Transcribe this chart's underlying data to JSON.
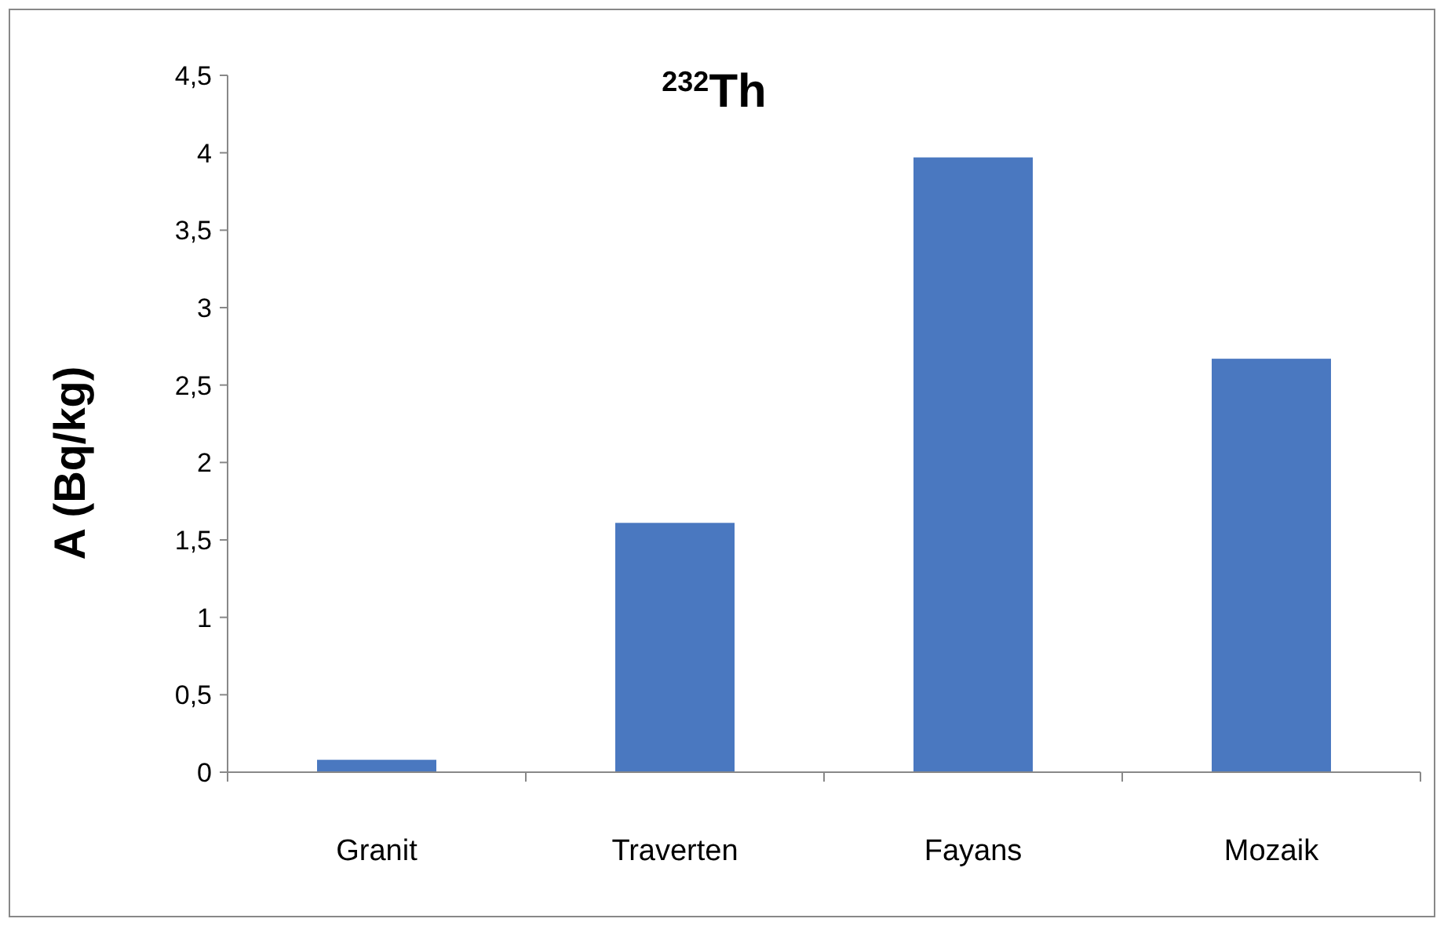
{
  "chart_data": {
    "type": "bar",
    "title": "$^{232}$Th",
    "ylabel": "A (Bq/kg)",
    "categories": [
      "Granit",
      "Traverten",
      "Fayans",
      "Mozaik"
    ],
    "values": [
      0.08,
      1.61,
      3.97,
      2.67
    ],
    "color": "#4a78c0",
    "ylim": [
      0,
      4.5
    ],
    "yticks": [
      0,
      {
        "value": 0.5,
        "label": "0,5"
      },
      1,
      {
        "value": 1.5,
        "label": "1,5"
      },
      2,
      {
        "value": 2.5,
        "label": "2,5"
      },
      3,
      {
        "value": 3.5,
        "label": "3,5"
      },
      4,
      {
        "value": 4.5,
        "label": "4,5"
      }
    ],
    "grid": false
  }
}
